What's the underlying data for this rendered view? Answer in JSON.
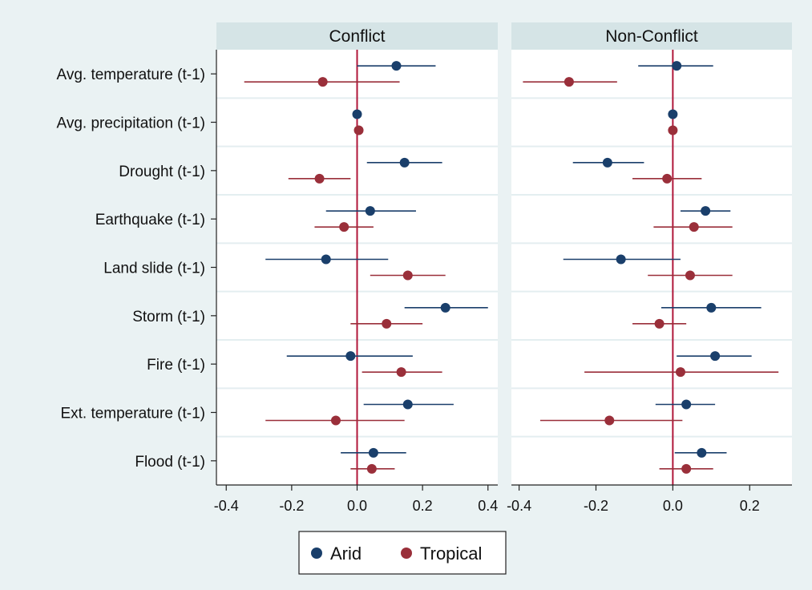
{
  "colors": {
    "background": "#eaf2f3",
    "panel_header": "#d5e4e6",
    "plot_bg": "#ffffff",
    "grid": "#e4eef0",
    "zero_line": "#b0163a",
    "arid": "#1a3f6b",
    "tropical": "#9a2f3a"
  },
  "chart_data": {
    "type": "scatter",
    "subtype": "coefficient-plot-with-confidence-intervals",
    "categories": [
      "Avg. temperature (t-1)",
      "Avg. precipitation (t-1)",
      "Drought (t-1)",
      "Earthquake (t-1)",
      "Land slide (t-1)",
      "Storm (t-1)",
      "Fire (t-1)",
      "Ext. temperature (t-1)",
      "Flood (t-1)"
    ],
    "legend": {
      "position": "bottom",
      "entries": [
        {
          "name": "Arid",
          "color_key": "arid"
        },
        {
          "name": "Tropical",
          "color_key": "tropical"
        }
      ]
    },
    "panels": [
      {
        "title": "Conflict",
        "xlim": [
          -0.43,
          0.43
        ],
        "ticks": [
          -0.4,
          -0.2,
          0.0,
          0.2,
          0.4
        ],
        "tick_labels": [
          "-0.4",
          "-0.2",
          "0.0",
          "0.2",
          "0.4"
        ],
        "series": [
          {
            "name": "Arid",
            "points": [
              [
                0.12,
                0.0,
                0.24
              ],
              [
                0.0,
                0.0,
                0.0
              ],
              [
                0.145,
                0.03,
                0.26
              ],
              [
                0.04,
                -0.095,
                0.18
              ],
              [
                -0.095,
                -0.28,
                0.095
              ],
              [
                0.27,
                0.145,
                0.4
              ],
              [
                -0.02,
                -0.215,
                0.17
              ],
              [
                0.155,
                0.02,
                0.295
              ],
              [
                0.05,
                -0.05,
                0.15
              ]
            ]
          },
          {
            "name": "Tropical",
            "points": [
              [
                -0.105,
                -0.345,
                0.13
              ],
              [
                0.005,
                0.005,
                0.005
              ],
              [
                -0.115,
                -0.21,
                -0.02
              ],
              [
                -0.04,
                -0.13,
                0.05
              ],
              [
                0.155,
                0.04,
                0.27
              ],
              [
                0.09,
                -0.02,
                0.2
              ],
              [
                0.135,
                0.015,
                0.26
              ],
              [
                -0.065,
                -0.28,
                0.145
              ],
              [
                0.045,
                -0.02,
                0.115
              ]
            ]
          }
        ]
      },
      {
        "title": "Non-Conflict",
        "xlim": [
          -0.42,
          0.31
        ],
        "ticks": [
          -0.4,
          -0.2,
          0.0,
          0.2
        ],
        "tick_labels": [
          "-0.4",
          "-0.2",
          "0.0",
          "0.2"
        ],
        "series": [
          {
            "name": "Arid",
            "points": [
              [
                0.01,
                -0.09,
                0.105
              ],
              [
                0.0,
                0.0,
                0.0
              ],
              [
                -0.17,
                -0.26,
                -0.075
              ],
              [
                0.085,
                0.02,
                0.15
              ],
              [
                -0.135,
                -0.285,
                0.02
              ],
              [
                0.1,
                -0.03,
                0.23
              ],
              [
                0.11,
                0.01,
                0.205
              ],
              [
                0.035,
                -0.045,
                0.11
              ],
              [
                0.075,
                0.005,
                0.14
              ]
            ]
          },
          {
            "name": "Tropical",
            "points": [
              [
                -0.27,
                -0.39,
                -0.145
              ],
              [
                0.0,
                0.0,
                0.0
              ],
              [
                -0.015,
                -0.105,
                0.075
              ],
              [
                0.055,
                -0.05,
                0.155
              ],
              [
                0.045,
                -0.065,
                0.155
              ],
              [
                -0.035,
                -0.105,
                0.035
              ],
              [
                0.02,
                -0.23,
                0.275
              ],
              [
                -0.165,
                -0.345,
                0.025
              ],
              [
                0.035,
                -0.035,
                0.105
              ]
            ]
          }
        ]
      }
    ]
  }
}
